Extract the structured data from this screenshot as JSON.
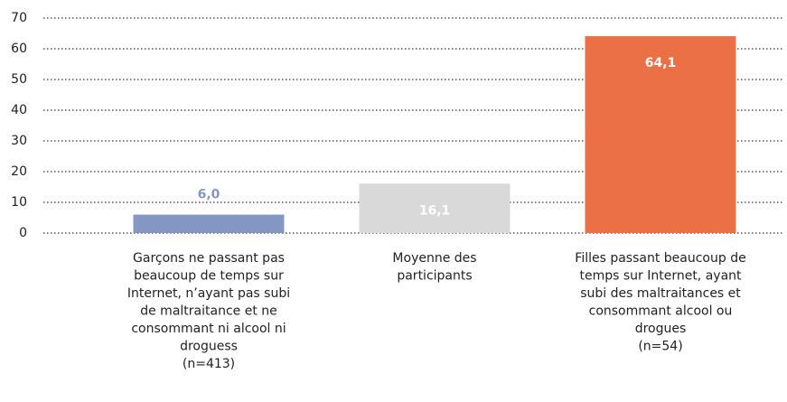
{
  "chart_data": {
    "type": "bar",
    "categories": [
      "Garçons ne passant pas\nbeaucoup de temps sur\nInternet, n’ayant pas subi\nde maltraitance et ne\nconsommant ni alcool ni\ndroguess\n(n=413)",
      "Moyenne des\nparticipants",
      "Filles passant beaucoup de\ntemps sur Internet, ayant\nsubi des maltraitances et\nconsommant alcool ou\ndrogues\n(n=54)"
    ],
    "values": [
      6.0,
      16.1,
      64.1
    ],
    "value_labels": [
      "6,0",
      "16,1",
      "64,1"
    ],
    "colors": [
      "#8497c4",
      "#d9d9d9",
      "#eb7045"
    ],
    "ylim": [
      0,
      70
    ],
    "yticks": [
      0,
      10,
      20,
      30,
      40,
      50,
      60,
      70
    ],
    "grid": true
  }
}
